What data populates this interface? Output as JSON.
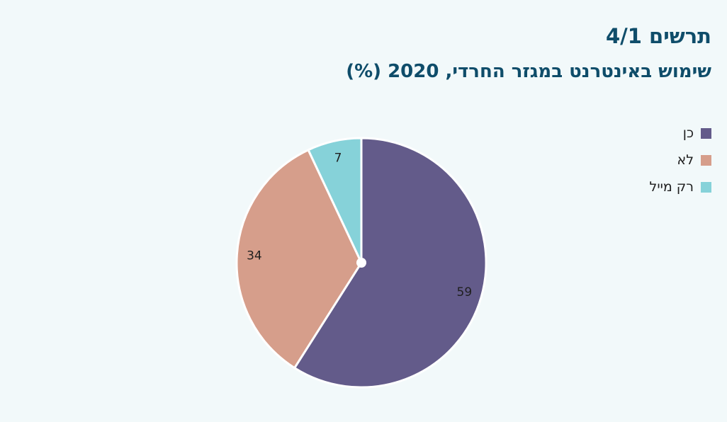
{
  "header": {
    "title": "תרשים 4/1",
    "subtitle": "שימוש באינטרנט במגזר החרדי, 2020 (%)"
  },
  "chart_data": {
    "type": "pie",
    "title": "שימוש באינטרנט במגזר החרדי, 2020 (%)",
    "categories": [
      "כן",
      "לא",
      "רק מייל"
    ],
    "values": [
      59,
      34,
      7
    ],
    "colors": [
      "#635b8a",
      "#d69e8b",
      "#86d2d9"
    ],
    "legend_position": "top-right"
  }
}
